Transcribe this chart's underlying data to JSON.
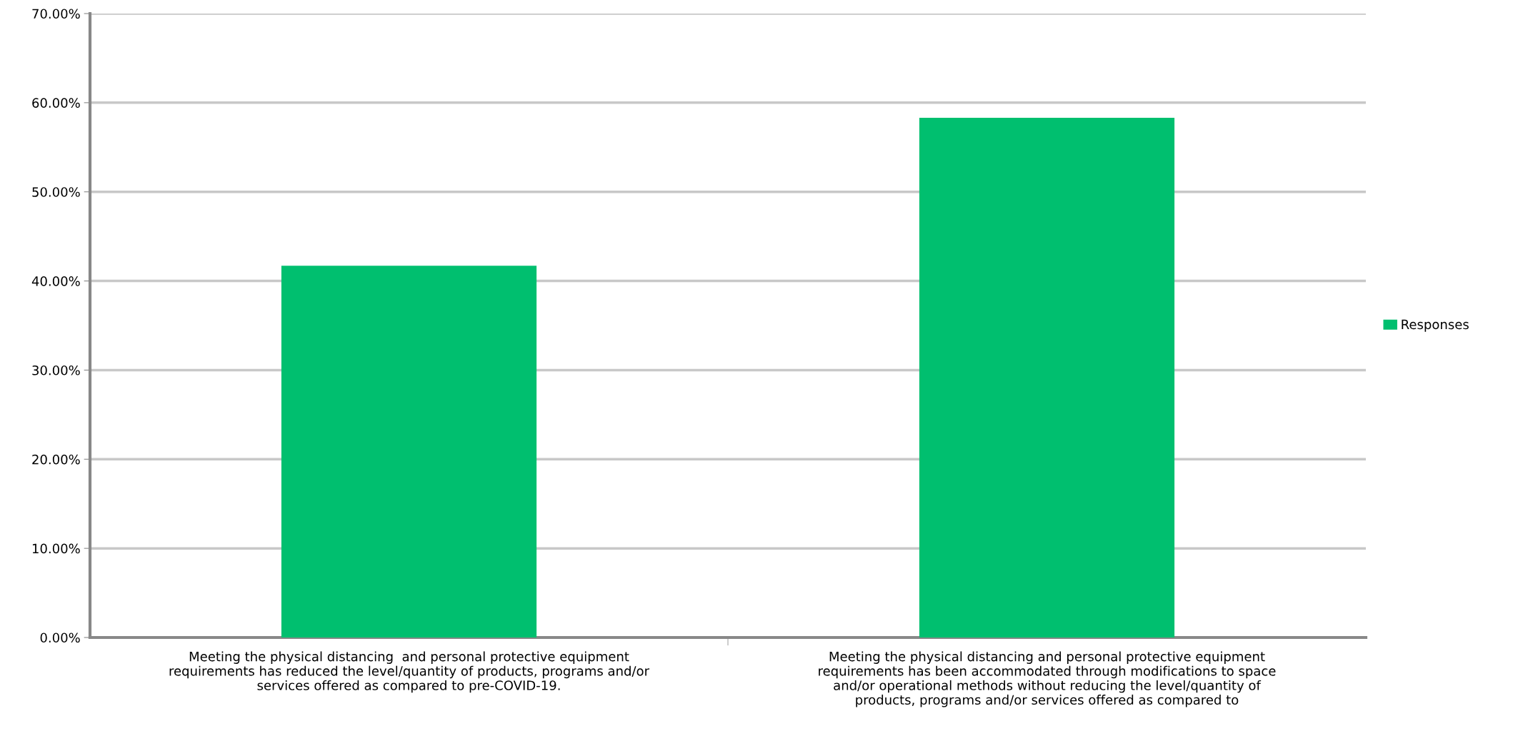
{
  "chart_data": {
    "type": "bar",
    "categories": [
      "Meeting the physical distancing  and personal protective equipment\nrequirements has reduced the level/quantity of products, programs and/or\nservices offered as compared to pre-COVID-19.",
      "Meeting the physical distancing and personal protective equipment\nrequirements has been accommodated through modifications to space\nand/or operational methods without reducing the level/quantity of\nproducts, programs and/or services offered as compared to"
    ],
    "series": [
      {
        "name": "Responses",
        "color": "#00bf6f",
        "values": [
          41.7,
          58.3
        ]
      }
    ],
    "ylim": [
      0,
      70
    ],
    "yticks": [
      {
        "value": 0,
        "label": "0.00%"
      },
      {
        "value": 10,
        "label": "10.00%"
      },
      {
        "value": 20,
        "label": "20.00%"
      },
      {
        "value": 30,
        "label": "30.00%"
      },
      {
        "value": 40,
        "label": "40.00%"
      },
      {
        "value": 50,
        "label": "50.00%"
      },
      {
        "value": 60,
        "label": "60.00%"
      },
      {
        "value": 70,
        "label": "70.00%"
      }
    ],
    "grid": "y",
    "legend": "right"
  }
}
